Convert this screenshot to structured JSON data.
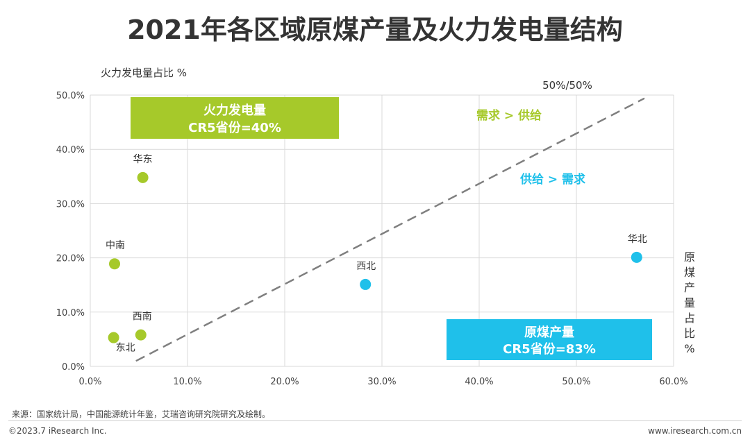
{
  "title": "2021年各区域原煤产量及火力发电量结构",
  "chart_data": {
    "type": "scatter",
    "y_axis_label": "火力发电量占比 %",
    "x_axis_label": "原煤产量占比%",
    "xlim": [
      0,
      60
    ],
    "ylim": [
      0,
      50
    ],
    "x_ticks": [
      "0.0%",
      "10.0%",
      "20.0%",
      "30.0%",
      "40.0%",
      "50.0%",
      "60.0%"
    ],
    "y_ticks": [
      "0.0%",
      "10.0%",
      "20.0%",
      "30.0%",
      "40.0%",
      "50.0%"
    ],
    "grid": true,
    "points": [
      {
        "label": "华东",
        "x": 5.4,
        "y": 34.8,
        "color": "#a6c92a"
      },
      {
        "label": "中南",
        "x": 2.5,
        "y": 18.9,
        "color": "#a6c92a"
      },
      {
        "label": "西南",
        "x": 5.2,
        "y": 5.8,
        "color": "#a6c92a"
      },
      {
        "label": "东北",
        "x": 2.4,
        "y": 5.3,
        "color": "#a6c92a"
      },
      {
        "label": "西北",
        "x": 28.3,
        "y": 15.1,
        "color": "#1fc0ea"
      },
      {
        "label": "华北",
        "x": 56.2,
        "y": 20.1,
        "color": "#1fc0ea"
      }
    ],
    "reference_line": {
      "label": "50%/50%",
      "from": [
        4.7,
        1
      ],
      "to": [
        57,
        49.4
      ]
    },
    "annotations": {
      "demand_gt_supply": "需求 > 供给",
      "supply_gt_demand": "供给 > 需求"
    },
    "boxes": {
      "thermal": {
        "line1": "火力发电量",
        "line2": "CR5省份=40%",
        "color": "#a6c92a"
      },
      "coal": {
        "line1": "原煤产量",
        "line2": "CR5省份=83%",
        "color": "#1fc0ea"
      }
    }
  },
  "footer": {
    "source": "来源：国家统计局，中国能源统计年鉴，艾瑞咨询研究院研究及绘制。",
    "copyright": "©2023.7 iResearch Inc.",
    "website": "www.iresearch.com.cn"
  }
}
